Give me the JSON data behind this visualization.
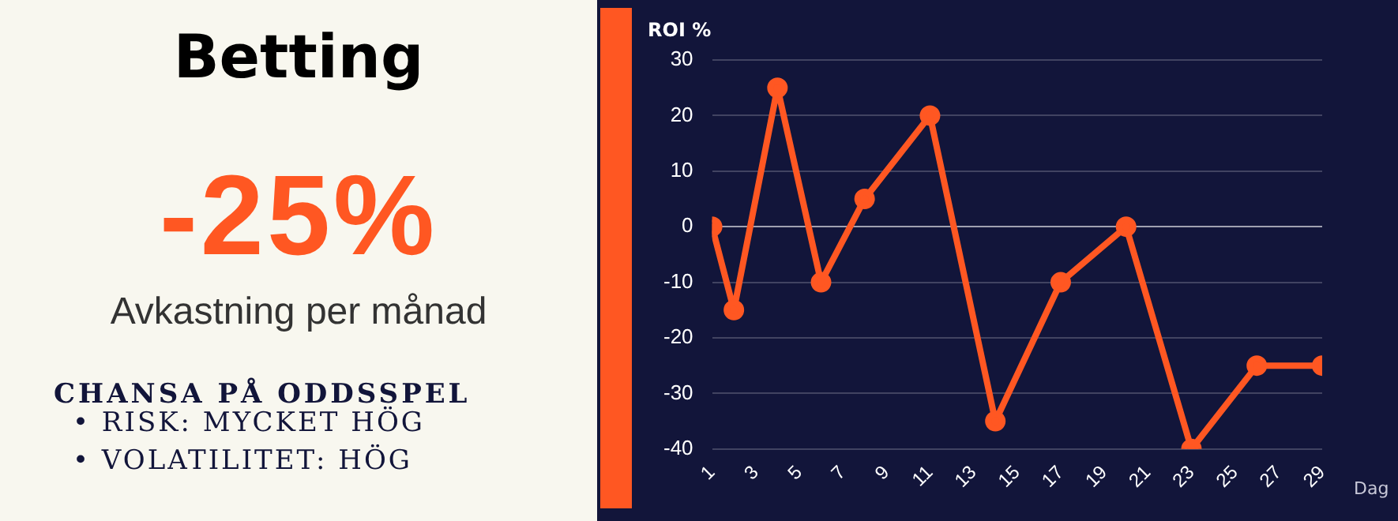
{
  "chart_data": {
    "type": "line",
    "title": "Betting",
    "annotations": [
      "-25%",
      "Avkastning per månad",
      "CHANSA PÅ ODDSSPEL",
      "• RISK: MYCKET HÖG",
      "• VOLATILITET: HÖG"
    ],
    "xlabel": "Dag",
    "ylabel": "ROI %",
    "x": [
      1,
      2,
      4,
      6,
      8,
      11,
      14,
      17,
      20,
      23,
      26,
      29
    ],
    "series": [
      {
        "color": "#ff5722",
        "values": [
          0,
          -15,
          25,
          -10,
          5,
          20,
          -35,
          -10,
          0,
          -40,
          -25,
          -25
        ]
      }
    ],
    "xlim": [
      1,
      29
    ],
    "xticks": [
      1,
      3,
      5,
      7,
      9,
      11,
      13,
      15,
      17,
      19,
      21,
      23,
      25,
      27,
      29
    ],
    "ylim": [
      -40,
      30
    ],
    "yticks": [
      -40,
      -30,
      -20,
      -10,
      0,
      10,
      20,
      30
    ],
    "grid": "y",
    "marker": "circle",
    "line_style": "solid",
    "legend": false
  }
}
